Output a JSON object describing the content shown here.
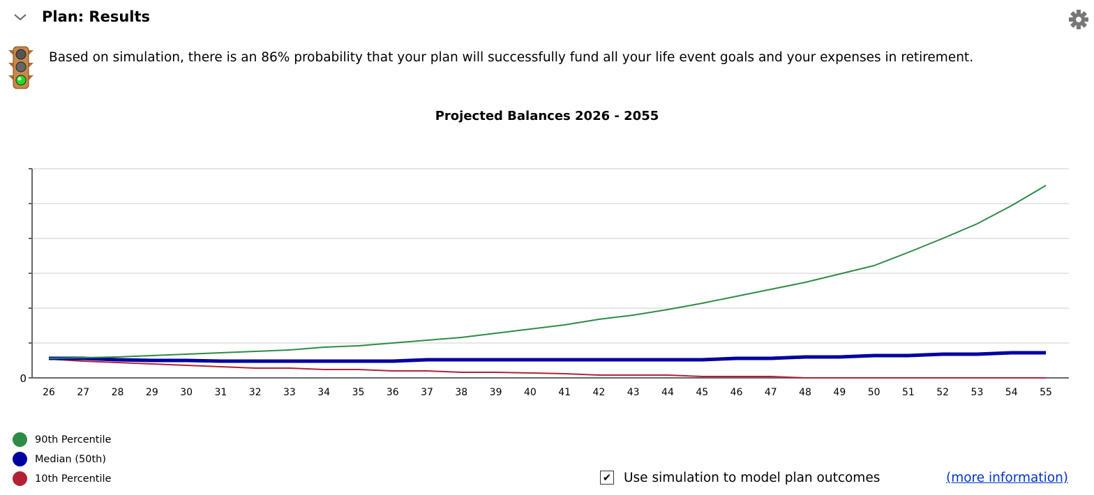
{
  "header": {
    "title": "Plan: Results",
    "collapse_icon": "chevron-down-icon",
    "settings_icon": "gear-icon"
  },
  "status": {
    "icon": "traffic-light-green-icon",
    "message": "Based on simulation, there is an 86% probability that your plan will successfully fund all your life event goals and your expenses in retirement."
  },
  "chart_data": {
    "type": "line",
    "title": "Projected Balances 2026 - 2055",
    "xlabel": "",
    "ylabel": "",
    "x": [
      "26",
      "27",
      "28",
      "29",
      "30",
      "31",
      "32",
      "33",
      "34",
      "35",
      "36",
      "37",
      "38",
      "39",
      "40",
      "41",
      "42",
      "43",
      "44",
      "45",
      "46",
      "47",
      "48",
      "49",
      "50",
      "51",
      "52",
      "53",
      "54",
      "55"
    ],
    "y_tick_labels": [
      "0"
    ],
    "ylim": [
      0,
      6
    ],
    "grid": true,
    "legend_position": "bottom-left",
    "series": [
      {
        "name": "90th Percentile",
        "color": "#2e8b45",
        "values": [
          0.56,
          0.58,
          0.6,
          0.64,
          0.68,
          0.72,
          0.76,
          0.8,
          0.88,
          0.92,
          1.0,
          1.08,
          1.16,
          1.28,
          1.4,
          1.52,
          1.68,
          1.8,
          1.96,
          2.14,
          2.34,
          2.54,
          2.74,
          2.98,
          3.22,
          3.6,
          4.0,
          4.42,
          4.94,
          5.52
        ]
      },
      {
        "name": "Median (50th)",
        "color": "#0000a0",
        "values": [
          0.56,
          0.56,
          0.52,
          0.5,
          0.5,
          0.48,
          0.48,
          0.48,
          0.48,
          0.48,
          0.48,
          0.52,
          0.52,
          0.52,
          0.52,
          0.52,
          0.52,
          0.52,
          0.52,
          0.52,
          0.56,
          0.56,
          0.6,
          0.6,
          0.64,
          0.64,
          0.68,
          0.68,
          0.72,
          0.72
        ]
      },
      {
        "name": "10th Percentile",
        "color": "#b22234",
        "values": [
          0.54,
          0.48,
          0.44,
          0.4,
          0.36,
          0.32,
          0.28,
          0.28,
          0.24,
          0.24,
          0.2,
          0.2,
          0.16,
          0.16,
          0.14,
          0.12,
          0.08,
          0.08,
          0.08,
          0.04,
          0.04,
          0.04,
          0,
          0,
          0,
          0,
          0,
          0,
          0,
          0
        ]
      }
    ]
  },
  "footer": {
    "checkbox_label": "Use simulation to model plan outcomes",
    "checkbox_checked": true,
    "more_info_link": "(more information)"
  }
}
